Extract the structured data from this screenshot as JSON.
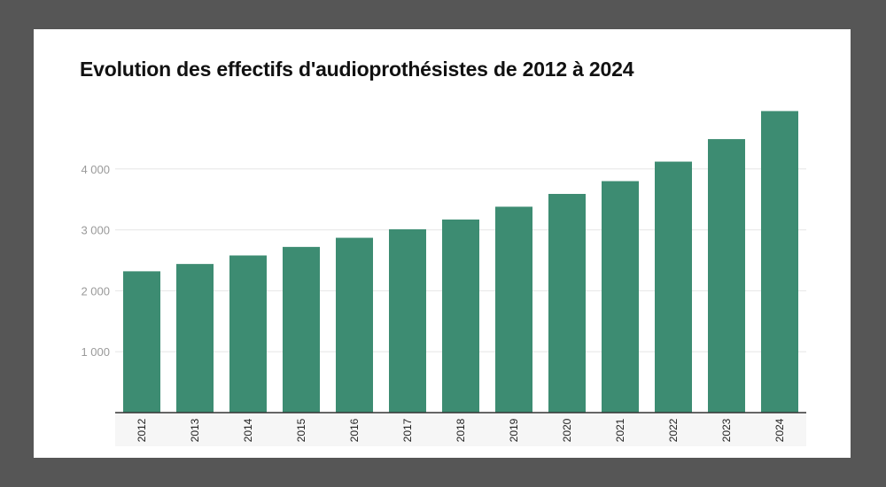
{
  "chart_data": {
    "type": "bar",
    "title": "Evolution des effectifs d'audioprothésistes de 2012 à 2024",
    "categories": [
      "2012",
      "2013",
      "2014",
      "2015",
      "2016",
      "2017",
      "2018",
      "2019",
      "2020",
      "2021",
      "2022",
      "2023",
      "2024"
    ],
    "values": [
      2320,
      2440,
      2580,
      2720,
      2870,
      3010,
      3170,
      3380,
      3590,
      3800,
      4120,
      4490,
      4950
    ],
    "ylim": [
      0,
      5000
    ],
    "yticks": [
      1000,
      2000,
      3000,
      4000
    ],
    "ytick_labels": [
      "1 000",
      "2 000",
      "3 000",
      "4 000"
    ],
    "grid": true,
    "colors": {
      "bar": "#3d8c72",
      "grid": "#e6e6e6",
      "axis": "#333333",
      "background": "#ffffff",
      "frame": "#565656"
    }
  }
}
